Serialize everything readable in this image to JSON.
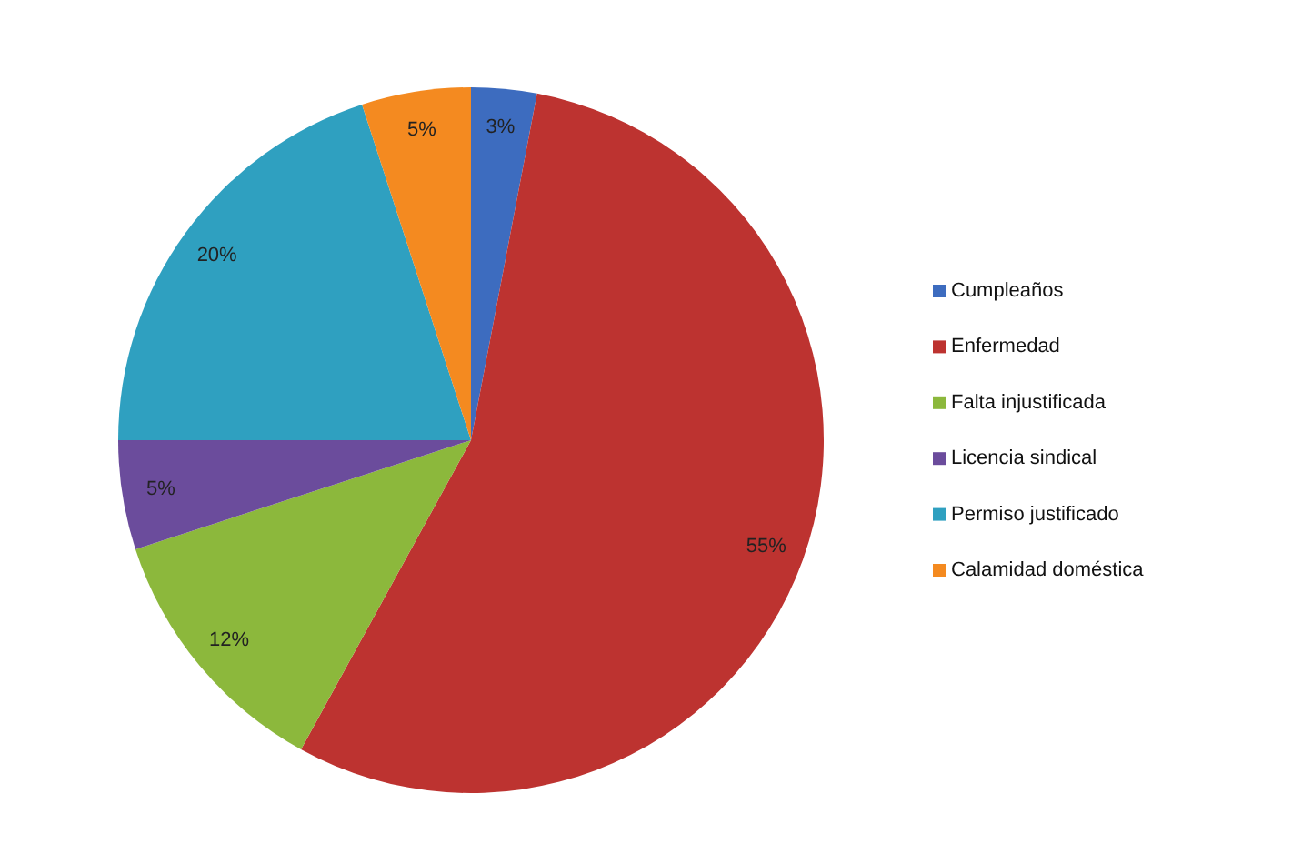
{
  "chart_data": {
    "type": "pie",
    "categories": [
      "Cumpleaños",
      "Enfermedad",
      "Falta injustificada",
      "Licencia sindical",
      "Permiso justificado",
      "Calamidad doméstica"
    ],
    "values": [
      3,
      55,
      12,
      5,
      20,
      5
    ],
    "colors": [
      "#3d6cbf",
      "#bd3330",
      "#8cb83c",
      "#6b4c9c",
      "#2fa0c0",
      "#f48a20"
    ],
    "value_labels": [
      "3%",
      "55%",
      "12%",
      "5%",
      "20%",
      "5%"
    ],
    "legend": "right"
  }
}
